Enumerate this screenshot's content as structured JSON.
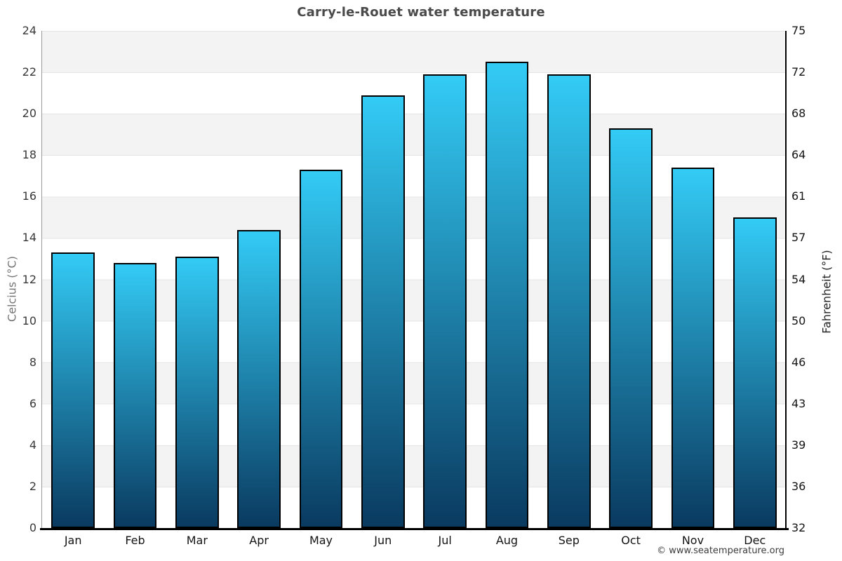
{
  "title": "Carry-le-Rouet water temperature",
  "watermark": "© www.seatemperature.org",
  "chart_data": {
    "type": "bar",
    "title": "Carry-le-Rouet water temperature",
    "categories": [
      "Jan",
      "Feb",
      "Mar",
      "Apr",
      "May",
      "Jun",
      "Jul",
      "Aug",
      "Sep",
      "Oct",
      "Nov",
      "Dec"
    ],
    "values": [
      13.3,
      12.8,
      13.1,
      14.4,
      17.3,
      20.9,
      21.9,
      22.5,
      21.9,
      19.3,
      17.4,
      15.0
    ],
    "ylabel_left": "Celcius (°C)",
    "ylabel_right": "Fahrenheit (°F)",
    "ylim_celsius": [
      0,
      24
    ],
    "yticks_celsius": [
      0,
      2,
      4,
      6,
      8,
      10,
      12,
      14,
      16,
      18,
      20,
      22,
      24
    ],
    "yticks_fahrenheit": [
      32,
      36,
      39,
      43,
      46,
      50,
      54,
      57,
      61,
      64,
      68,
      72,
      75
    ],
    "grid": true,
    "legend": false,
    "colors": {
      "bar_top": "#33cbf5",
      "bar_bottom": "#0a3a60",
      "bar_border": "#000000",
      "band": "#f3f3f3",
      "gridline": "#e4e4e4",
      "title_text": "#4a4a4a"
    }
  }
}
